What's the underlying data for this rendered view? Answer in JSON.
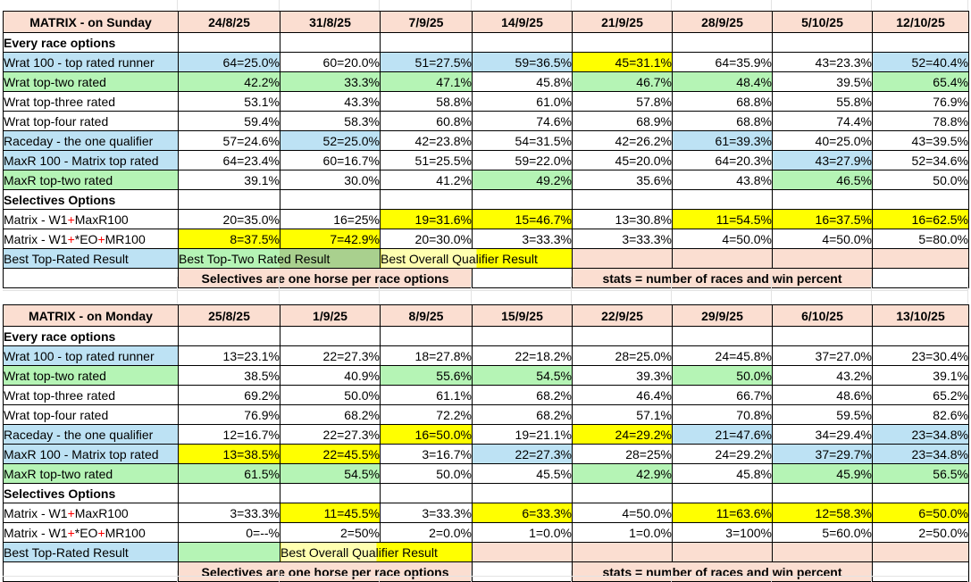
{
  "colors": {
    "header_bg": "#FBDED1",
    "blue_highlight": "#BDE2F4",
    "green_highlight": "#B5F4B5",
    "green_dark": "#A9D08E",
    "yellow_highlight": "#FFFF00",
    "pale_yellow": "#FFFFB0",
    "red_text": "#FF0000"
  },
  "tables": [
    {
      "title": "MATRIX - on Sunday",
      "dates": [
        "24/8/25",
        "31/8/25",
        "7/9/25",
        "14/9/25",
        "21/9/25",
        "28/9/25",
        "5/10/25",
        "12/10/25"
      ],
      "rows": [
        {
          "label": "Every race options",
          "label_red": true,
          "label_bg": "w",
          "cells": [
            [
              "",
              "w"
            ],
            [
              "",
              "w"
            ],
            [
              "",
              "w"
            ],
            [
              "",
              "w"
            ],
            [
              "",
              "w"
            ],
            [
              "",
              "w"
            ],
            [
              "",
              "w"
            ],
            [
              "",
              "w"
            ]
          ]
        },
        {
          "label": "Wrat 100 - top rated runner",
          "label_bg": "b",
          "cells": [
            [
              "64=25.0%",
              "b"
            ],
            [
              "60=20.0%",
              "w"
            ],
            [
              "51=27.5%",
              "b"
            ],
            [
              "59=36.5%",
              "b"
            ],
            [
              "45=31.1%",
              "y"
            ],
            [
              "64=35.9%",
              "w"
            ],
            [
              "43=23.3%",
              "w"
            ],
            [
              "52=40.4%",
              "b"
            ]
          ]
        },
        {
          "label": "Wrat top-two rated",
          "label_bg": "g",
          "cells": [
            [
              "42.2%",
              "g"
            ],
            [
              "33.3%",
              "g"
            ],
            [
              "47.1%",
              "g"
            ],
            [
              "45.8%",
              "w"
            ],
            [
              "46.7%",
              "g"
            ],
            [
              "48.4%",
              "g"
            ],
            [
              "39.5%",
              "w"
            ],
            [
              "65.4%",
              "g"
            ]
          ]
        },
        {
          "label": "Wrat top-three rated",
          "label_bg": "w",
          "cells": [
            [
              "53.1%",
              "w"
            ],
            [
              "43.3%",
              "w"
            ],
            [
              "58.8%",
              "w"
            ],
            [
              "61.0%",
              "w"
            ],
            [
              "57.8%",
              "w"
            ],
            [
              "68.8%",
              "w"
            ],
            [
              "55.8%",
              "w"
            ],
            [
              "76.9%",
              "w"
            ]
          ]
        },
        {
          "label": "Wrat top-four rated",
          "label_bg": "w",
          "cells": [
            [
              "59.4%",
              "w"
            ],
            [
              "58.3%",
              "w"
            ],
            [
              "60.8%",
              "w"
            ],
            [
              "74.6%",
              "w"
            ],
            [
              "68.9%",
              "w"
            ],
            [
              "68.8%",
              "w"
            ],
            [
              "74.4%",
              "w"
            ],
            [
              "78.8%",
              "w"
            ]
          ]
        },
        {
          "label": "Raceday - the one qualifier",
          "label_bg": "b",
          "cells": [
            [
              "57=24.6%",
              "w"
            ],
            [
              "52=25.0%",
              "b"
            ],
            [
              "42=23.8%",
              "w"
            ],
            [
              "54=31.5%",
              "w"
            ],
            [
              "42=26.2%",
              "w"
            ],
            [
              "61=39.3%",
              "b"
            ],
            [
              "40=25.0%",
              "w"
            ],
            [
              "43=39.5%",
              "w"
            ]
          ]
        },
        {
          "label": "MaxR 100 - Matrix top rated",
          "label_bg": "b",
          "cells": [
            [
              "64=23.4%",
              "w"
            ],
            [
              "60=16.7%",
              "w"
            ],
            [
              "51=25.5%",
              "w"
            ],
            [
              "59=22.0%",
              "w"
            ],
            [
              "45=20.0%",
              "w"
            ],
            [
              "64=20.3%",
              "w"
            ],
            [
              "43=27.9%",
              "b"
            ],
            [
              "52=34.6%",
              "w"
            ]
          ]
        },
        {
          "label": "MaxR top-two rated",
          "label_bg": "g",
          "cells": [
            [
              "39.1%",
              "w"
            ],
            [
              "30.0%",
              "w"
            ],
            [
              "41.2%",
              "w"
            ],
            [
              "49.2%",
              "g"
            ],
            [
              "35.6%",
              "w"
            ],
            [
              "43.8%",
              "w"
            ],
            [
              "46.5%",
              "g"
            ],
            [
              "50.0%",
              "w"
            ]
          ]
        },
        {
          "label": "Selectives Options",
          "label_red": true,
          "label_bg": "w",
          "cells": [
            [
              "",
              "w"
            ],
            [
              "",
              "w"
            ],
            [
              "",
              "w"
            ],
            [
              "",
              "w"
            ],
            [
              "",
              "w"
            ],
            [
              "",
              "w"
            ],
            [
              "",
              "w"
            ],
            [
              "",
              "w"
            ]
          ]
        },
        {
          "label_parts": [
            {
              "t": "Matrix - W1"
            },
            {
              "t": "+",
              "red": true
            },
            {
              "t": "MaxR100"
            }
          ],
          "label_bg": "w",
          "cells": [
            [
              "20=35.0%",
              "w"
            ],
            [
              "16=25%",
              "w"
            ],
            [
              "19=31.6%",
              "y"
            ],
            [
              "15=46.7%",
              "y"
            ],
            [
              "13=30.8%",
              "w"
            ],
            [
              "11=54.5%",
              "y"
            ],
            [
              "16=37.5%",
              "y"
            ],
            [
              "16=62.5%",
              "y"
            ]
          ]
        },
        {
          "label_parts": [
            {
              "t": "Matrix - W1"
            },
            {
              "t": "+",
              "red": true
            },
            {
              "t": "*EO"
            },
            {
              "t": "+",
              "red": true
            },
            {
              "t": "MR100"
            }
          ],
          "label_bg": "w",
          "cells": [
            [
              "8=37.5%",
              "y"
            ],
            [
              "7=42.9%",
              "y"
            ],
            [
              "20=30.0%",
              "w"
            ],
            [
              "3=33.3%",
              "w"
            ],
            [
              "3=33.3%",
              "w"
            ],
            [
              "4=50.0%",
              "w"
            ],
            [
              "4=50.0%",
              "w"
            ],
            [
              "5=80.0%",
              "w"
            ]
          ]
        }
      ],
      "best_row": {
        "label": "Best Top-Rated Result",
        "segments": [
          {
            "span": 2,
            "text": "Best Top-Two Rated Result",
            "bg": "gd"
          },
          {
            "span": 2,
            "text": "Best Overall Qualifier Result",
            "bg": "yd"
          },
          {
            "span": 1,
            "text": "",
            "bg": "p"
          },
          {
            "span": 1,
            "text": "",
            "bg": "p"
          },
          {
            "span": 1,
            "text": "",
            "bg": "p"
          },
          {
            "span": 1,
            "text": "",
            "bg": "p"
          }
        ]
      },
      "note_row": {
        "segments": [
          {
            "span": 1,
            "text": "",
            "bg": "x"
          },
          {
            "span": 3,
            "text": "Selectives are one horse per race options",
            "bg": "p",
            "note": true
          },
          {
            "span": 1,
            "text": "",
            "bg": "x"
          },
          {
            "span": 3,
            "text": "stats = number of races and win percent",
            "bg": "p",
            "note": true
          },
          {
            "span": 1,
            "text": "",
            "bg": "x"
          }
        ]
      }
    },
    {
      "title": "MATRIX - on Monday",
      "dates": [
        "25/8/25",
        "1/9/25",
        "8/9/25",
        "15/9/25",
        "22/9/25",
        "29/9/25",
        "6/10/25",
        "13/10/25"
      ],
      "rows": [
        {
          "label": "Every race options",
          "label_red": true,
          "label_bg": "w",
          "cells": [
            [
              "",
              "w"
            ],
            [
              "",
              "w"
            ],
            [
              "",
              "w"
            ],
            [
              "",
              "w"
            ],
            [
              "",
              "w"
            ],
            [
              "",
              "w"
            ],
            [
              "",
              "w"
            ],
            [
              "",
              "w"
            ]
          ]
        },
        {
          "label": "Wrat 100 - top rated runner",
          "label_bg": "b",
          "cells": [
            [
              "13=23.1%",
              "w"
            ],
            [
              "22=27.3%",
              "w"
            ],
            [
              "18=27.8%",
              "w"
            ],
            [
              "22=18.2%",
              "w"
            ],
            [
              "28=25.0%",
              "w"
            ],
            [
              "24=45.8%",
              "w"
            ],
            [
              "37=27.0%",
              "w"
            ],
            [
              "23=30.4%",
              "w"
            ]
          ]
        },
        {
          "label": "Wrat top-two rated",
          "label_bg": "g",
          "cells": [
            [
              "38.5%",
              "w"
            ],
            [
              "40.9%",
              "w"
            ],
            [
              "55.6%",
              "g"
            ],
            [
              "54.5%",
              "g"
            ],
            [
              "39.3%",
              "w"
            ],
            [
              "50.0%",
              "g"
            ],
            [
              "43.2%",
              "w"
            ],
            [
              "39.1%",
              "w"
            ]
          ]
        },
        {
          "label": "Wrat top-three rated",
          "label_bg": "w",
          "cells": [
            [
              "69.2%",
              "w"
            ],
            [
              "50.0%",
              "w"
            ],
            [
              "61.1%",
              "w"
            ],
            [
              "68.2%",
              "w"
            ],
            [
              "46.4%",
              "w"
            ],
            [
              "66.7%",
              "w"
            ],
            [
              "48.6%",
              "w"
            ],
            [
              "65.2%",
              "w"
            ]
          ]
        },
        {
          "label": "Wrat top-four rated",
          "label_bg": "w",
          "cells": [
            [
              "76.9%",
              "w"
            ],
            [
              "68.2%",
              "w"
            ],
            [
              "72.2%",
              "w"
            ],
            [
              "68.2%",
              "w"
            ],
            [
              "57.1%",
              "w"
            ],
            [
              "70.8%",
              "w"
            ],
            [
              "59.5%",
              "w"
            ],
            [
              "82.6%",
              "w"
            ]
          ]
        },
        {
          "label": "Raceday - the one qualifier",
          "label_bg": "b",
          "cells": [
            [
              "12=16.7%",
              "w"
            ],
            [
              "22=27.3%",
              "w"
            ],
            [
              "16=50.0%",
              "y"
            ],
            [
              "19=21.1%",
              "w"
            ],
            [
              "24=29.2%",
              "y"
            ],
            [
              "21=47.6%",
              "b"
            ],
            [
              "34=29.4%",
              "w"
            ],
            [
              "23=34.8%",
              "b"
            ]
          ]
        },
        {
          "label": "MaxR 100 - Matrix top rated",
          "label_bg": "b",
          "cells": [
            [
              "13=38.5%",
              "y"
            ],
            [
              "22=45.5%",
              "y"
            ],
            [
              "3=16.7%",
              "w"
            ],
            [
              "22=27.3%",
              "b"
            ],
            [
              "28=25%",
              "w"
            ],
            [
              "24=29.2%",
              "w"
            ],
            [
              "37=29.7%",
              "b"
            ],
            [
              "23=34.8%",
              "b"
            ]
          ]
        },
        {
          "label": "MaxR top-two rated",
          "label_bg": "g",
          "cells": [
            [
              "61.5%",
              "g"
            ],
            [
              "54.5%",
              "g"
            ],
            [
              "50.0%",
              "w"
            ],
            [
              "45.5%",
              "w"
            ],
            [
              "42.9%",
              "g"
            ],
            [
              "45.8%",
              "w"
            ],
            [
              "45.9%",
              "g"
            ],
            [
              "56.5%",
              "g"
            ]
          ]
        },
        {
          "label": "Selectives Options",
          "label_red": true,
          "label_bg": "w",
          "cells": [
            [
              "",
              "w"
            ],
            [
              "",
              "w"
            ],
            [
              "",
              "w"
            ],
            [
              "",
              "w"
            ],
            [
              "",
              "w"
            ],
            [
              "",
              "w"
            ],
            [
              "",
              "w"
            ],
            [
              "",
              "w"
            ]
          ]
        },
        {
          "label_parts": [
            {
              "t": "Matrix - W1"
            },
            {
              "t": "+",
              "red": true
            },
            {
              "t": "MaxR100"
            }
          ],
          "label_bg": "w",
          "cells": [
            [
              "3=33.3%",
              "w"
            ],
            [
              "11=45.5%",
              "y"
            ],
            [
              "3=33.3%",
              "w"
            ],
            [
              "6=33.3%",
              "y"
            ],
            [
              "4=50.0%",
              "w"
            ],
            [
              "11=63.6%",
              "y"
            ],
            [
              "12=58.3%",
              "y"
            ],
            [
              "6=50.0%",
              "y"
            ]
          ]
        },
        {
          "label_parts": [
            {
              "t": "Matrix - W1"
            },
            {
              "t": "+",
              "red": true
            },
            {
              "t": "*EO"
            },
            {
              "t": "+",
              "red": true
            },
            {
              "t": "MR100"
            }
          ],
          "label_bg": "w",
          "cells": [
            [
              "0=--%",
              "w"
            ],
            [
              "2=50%",
              "w"
            ],
            [
              "2=0.0%",
              "w"
            ],
            [
              "1=0.0%",
              "w"
            ],
            [
              "1=0.0%",
              "w"
            ],
            [
              "3=100%",
              "w"
            ],
            [
              "5=60.0%",
              "w"
            ],
            [
              "2=50.0%",
              "w"
            ]
          ]
        }
      ],
      "best_row": {
        "label": "Best Top-Rated Result",
        "segments": [
          {
            "span": 1,
            "text": "",
            "bg": "g"
          },
          {
            "span": 2,
            "text": "Best Overall Qualifier Result",
            "bg": "yd"
          },
          {
            "span": 1,
            "text": "",
            "bg": "p"
          },
          {
            "span": 1,
            "text": "",
            "bg": "p"
          },
          {
            "span": 1,
            "text": "",
            "bg": "p"
          },
          {
            "span": 1,
            "text": "",
            "bg": "p"
          },
          {
            "span": 1,
            "text": "",
            "bg": "p"
          }
        ]
      },
      "note_row": {
        "segments": [
          {
            "span": 1,
            "text": "",
            "bg": "x"
          },
          {
            "span": 3,
            "text": "Selectives are one horse per race options",
            "bg": "p",
            "note": true
          },
          {
            "span": 1,
            "text": "",
            "bg": "x"
          },
          {
            "span": 3,
            "text": "stats = number of races and win percent",
            "bg": "p",
            "note": true
          },
          {
            "span": 1,
            "text": "",
            "bg": "x"
          }
        ]
      }
    }
  ]
}
